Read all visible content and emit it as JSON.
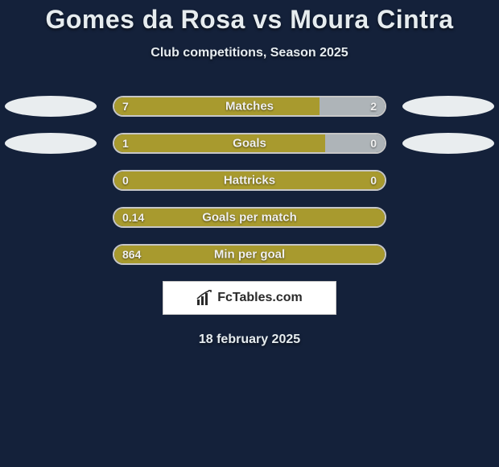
{
  "title": "Gomes da Rosa vs Moura Cintra",
  "subtitle": "Club competitions, Season 2025",
  "date": "18 february 2025",
  "colors": {
    "background": "#14213a",
    "left_bar": "#a89a2e",
    "right_bar": "#aeb4b8",
    "bar_border": "#c7c7c7",
    "text": "#e6ecef",
    "oval": "#e9edef"
  },
  "logo": {
    "text": "FcTables.com"
  },
  "rows": [
    {
      "label": "Matches",
      "left_value": "7",
      "right_value": "2",
      "left_pct": 76,
      "right_pct": 24,
      "left_color": "#a89a2e",
      "right_color": "#aeb4b8",
      "show_ovals": true
    },
    {
      "label": "Goals",
      "left_value": "1",
      "right_value": "0",
      "left_pct": 78,
      "right_pct": 22,
      "left_color": "#a89a2e",
      "right_color": "#aeb4b8",
      "show_ovals": true
    },
    {
      "label": "Hattricks",
      "left_value": "0",
      "right_value": "0",
      "left_pct": 100,
      "right_pct": 0,
      "left_color": "#a89a2e",
      "right_color": "#aeb4b8",
      "show_ovals": false
    },
    {
      "label": "Goals per match",
      "left_value": "0.14",
      "right_value": "",
      "left_pct": 100,
      "right_pct": 0,
      "left_color": "#a89a2e",
      "right_color": "#aeb4b8",
      "show_ovals": false
    },
    {
      "label": "Min per goal",
      "left_value": "864",
      "right_value": "",
      "left_pct": 100,
      "right_pct": 0,
      "left_color": "#a89a2e",
      "right_color": "#aeb4b8",
      "show_ovals": false
    }
  ]
}
